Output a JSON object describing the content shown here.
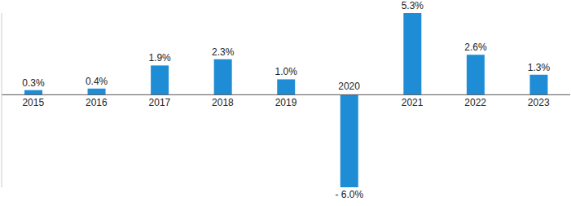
{
  "chart_data": {
    "type": "bar",
    "categories": [
      "2015",
      "2016",
      "2017",
      "2018",
      "2019",
      "2020",
      "2021",
      "2022",
      "2023"
    ],
    "values": [
      0.3,
      0.4,
      1.9,
      2.3,
      1.0,
      -6.0,
      5.3,
      2.6,
      1.3
    ],
    "value_labels": [
      "0.3%",
      "0.4%",
      "1.9%",
      "2.3%",
      "1.0%",
      "- 6.0%",
      "5.3%",
      "2.6%",
      "1.3%"
    ],
    "color": "#1f8dd6",
    "ylim": [
      -6,
      5.3
    ],
    "grid": false,
    "data_labels": true,
    "tick_labels": "x"
  }
}
